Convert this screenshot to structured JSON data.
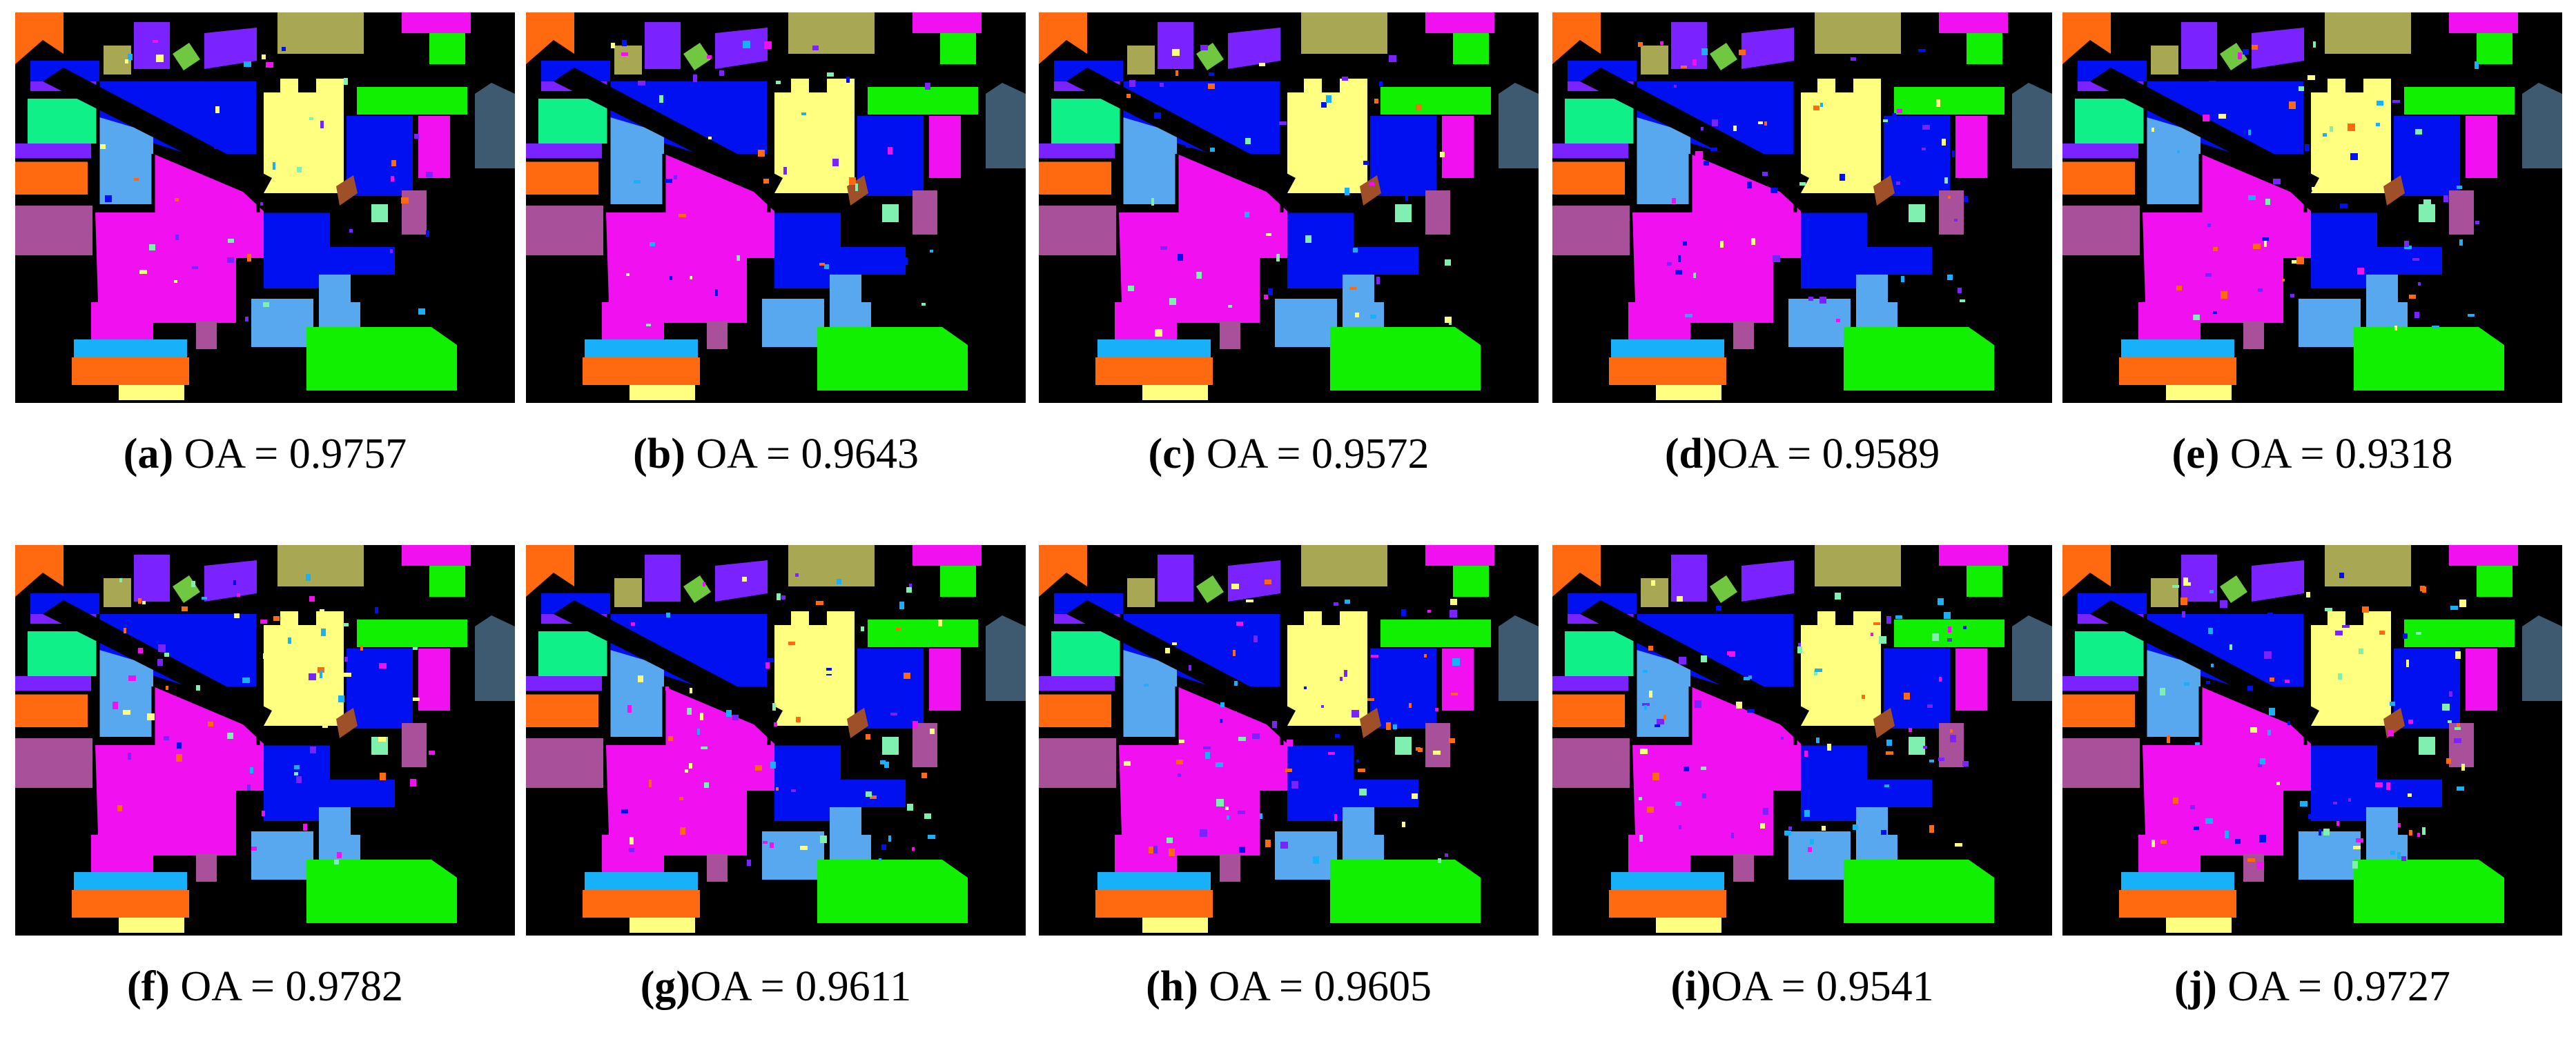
{
  "palette": {
    "background": "#000000",
    "orange": "#FF6A10",
    "olive": "#A8A854",
    "violet": "#7A22FF",
    "green_bright": "#10F000",
    "blue": "#0010F0",
    "mint": "#10F088",
    "sky_blue": "#58A8F0",
    "yellow": "#FFFF80",
    "magenta": "#F010F0",
    "slate": "#3E5A70",
    "purple_mauve": "#A8509A",
    "brown": "#A05028",
    "cyan_blue": "#18B0F8",
    "pale_mint": "#80F0B0",
    "lime": "#70C840",
    "gold": "#F8C020"
  },
  "panels": [
    {
      "letter": "(a)",
      "text": " OA = 0.9757"
    },
    {
      "letter": "(b)",
      "text": " OA = 0.9643"
    },
    {
      "letter": "(c)",
      "text": " OA = 0.9572"
    },
    {
      "letter": "(d)",
      "text": "OA = 0.9589"
    },
    {
      "letter": "(e)",
      "text": " OA = 0.9318"
    },
    {
      "letter": "(f)",
      "text": " OA = 0.9782"
    },
    {
      "letter": "(g)",
      "text": "OA = 0.9611"
    },
    {
      "letter": "(h)",
      "text": " OA = 0.9605"
    },
    {
      "letter": "(i)",
      "text": "OA = 0.9541"
    },
    {
      "letter": "(j)",
      "text": " OA = 0.9727"
    }
  ]
}
